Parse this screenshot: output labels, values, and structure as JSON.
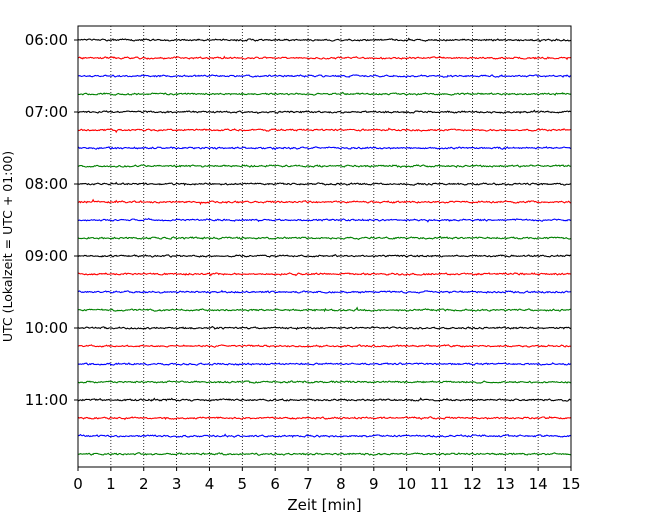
{
  "chart_data": {
    "type": "line",
    "title": "",
    "xlabel": "Zeit  [min]",
    "ylabel": "UTC (Lokalzeit = UTC + 01:00)",
    "xlim": [
      0,
      15
    ],
    "xticks": [
      0,
      1,
      2,
      3,
      4,
      5,
      6,
      7,
      8,
      9,
      10,
      11,
      12,
      13,
      14,
      15
    ],
    "xtick_labels": [
      "0",
      "1",
      "2",
      "3",
      "4",
      "5",
      "6",
      "7",
      "8",
      "9",
      "10",
      "11",
      "12",
      "13",
      "14",
      "15"
    ],
    "ytick_labels": [
      "06:00",
      "07:00",
      "08:00",
      "09:00",
      "10:00",
      "11:00"
    ],
    "grid": {
      "x": true,
      "y": false,
      "style": "dotted"
    },
    "trace_interval_minutes": 15,
    "trace_start": "06:00",
    "trace_count": 24,
    "trace_colors": [
      "#000000",
      "#ff0000",
      "#0000ff",
      "#008000"
    ],
    "traces": [
      {
        "start": "06:00",
        "color": "#000000"
      },
      {
        "start": "06:15",
        "color": "#ff0000"
      },
      {
        "start": "06:30",
        "color": "#0000ff"
      },
      {
        "start": "06:45",
        "color": "#008000"
      },
      {
        "start": "07:00",
        "color": "#000000"
      },
      {
        "start": "07:15",
        "color": "#ff0000"
      },
      {
        "start": "07:30",
        "color": "#0000ff"
      },
      {
        "start": "07:45",
        "color": "#008000"
      },
      {
        "start": "08:00",
        "color": "#000000"
      },
      {
        "start": "08:15",
        "color": "#ff0000"
      },
      {
        "start": "08:30",
        "color": "#0000ff"
      },
      {
        "start": "08:45",
        "color": "#008000"
      },
      {
        "start": "09:00",
        "color": "#000000"
      },
      {
        "start": "09:15",
        "color": "#ff0000"
      },
      {
        "start": "09:30",
        "color": "#0000ff"
      },
      {
        "start": "09:45",
        "color": "#008000"
      },
      {
        "start": "10:00",
        "color": "#000000"
      },
      {
        "start": "10:15",
        "color": "#ff0000"
      },
      {
        "start": "10:30",
        "color": "#0000ff"
      },
      {
        "start": "10:45",
        "color": "#008000"
      },
      {
        "start": "11:00",
        "color": "#000000"
      },
      {
        "start": "11:15",
        "color": "#ff0000"
      },
      {
        "start": "11:30",
        "color": "#0000ff"
      },
      {
        "start": "11:45",
        "color": "#008000"
      }
    ]
  }
}
